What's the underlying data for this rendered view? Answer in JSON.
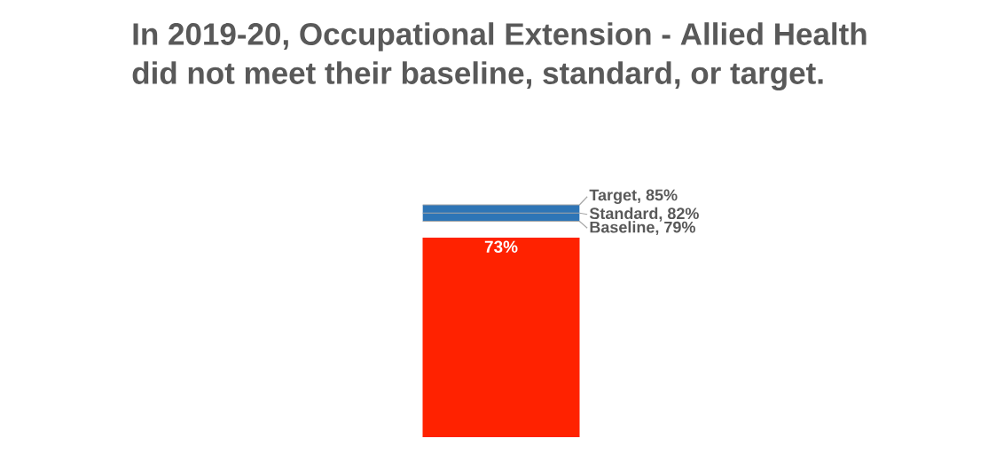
{
  "chart_data": {
    "type": "bar",
    "title": "In 2019-20, Occupational Extension - Allied Health did not meet their baseline, standard, or target.",
    "categories": [
      null
    ],
    "values": [
      73
    ],
    "value_labels": [
      "73%"
    ],
    "colors": [
      "#ff2200"
    ],
    "ylim": [
      0,
      85
    ],
    "bands": [
      {
        "axis": "y",
        "from": 79,
        "to": 85,
        "color": "#2e75b6"
      }
    ],
    "ref_lines": [
      {
        "axis": "y",
        "value": 79,
        "label": "Baseline, 79%",
        "color": "#a6a6a6"
      },
      {
        "axis": "y",
        "value": 82,
        "label": "Standard, 82%",
        "color": "#a6a6a6"
      },
      {
        "axis": "y",
        "value": 85,
        "label": "Target, 85%",
        "color": "#a6a6a6"
      }
    ]
  }
}
